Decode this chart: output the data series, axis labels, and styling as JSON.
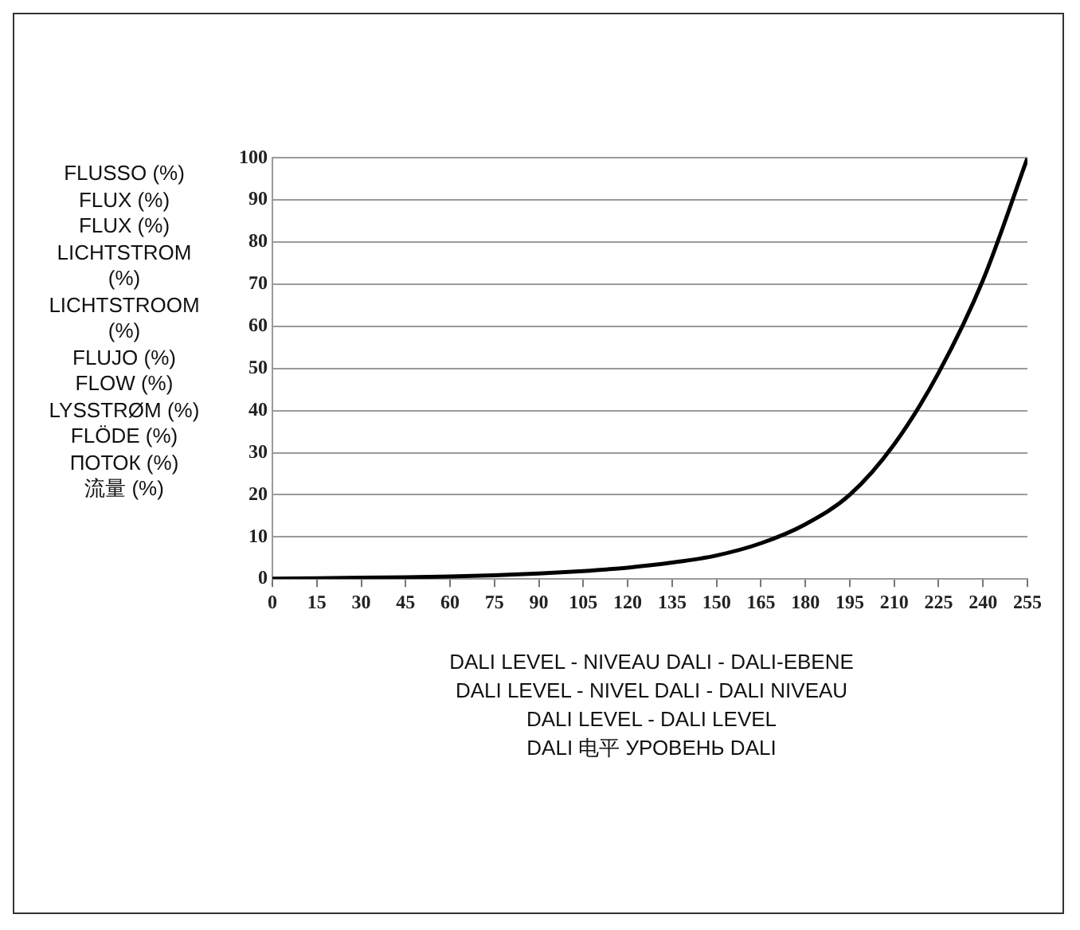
{
  "chart_data": {
    "type": "line",
    "xlabel": "DALI  LEVEL - NIVEAU DALI - DALI-EBENE\nDALI LEVEL - NIVEL DALI - DALI NIVEAU\nDALI LEVEL - DALI LEVEL\nDALI 电平 УРОВЕНЬ DALI",
    "ylabel": "FLUSSO (%)\nFLUX (%)\nFLUX (%)\nLICHTSTROM\n(%)\nLICHTSTROOM\n(%)\nFLUJO (%)\nFLOW (%)\nLYSSTRØM (%)\nFLÖDE (%)\nПОТОК (%)\n流量 (%)",
    "x": [
      0,
      15,
      30,
      45,
      60,
      75,
      90,
      105,
      120,
      135,
      150,
      165,
      180,
      195,
      210,
      225,
      240,
      255
    ],
    "series": [
      {
        "color": "#000000",
        "values": [
          0.1,
          0.2,
          0.3,
          0.4,
          0.6,
          0.9,
          1.3,
          1.9,
          2.7,
          3.9,
          5.6,
          8.5,
          13,
          20,
          32,
          49,
          71,
          100
        ]
      }
    ],
    "xlim": [
      0,
      255
    ],
    "xticks": [
      0,
      15,
      30,
      45,
      60,
      75,
      90,
      105,
      120,
      135,
      150,
      165,
      180,
      195,
      210,
      225,
      240,
      255
    ],
    "ylim": [
      0,
      100
    ],
    "yticks": [
      0,
      10,
      20,
      30,
      40,
      50,
      60,
      70,
      80,
      90,
      100
    ],
    "grid": "y",
    "legend": false,
    "marker": "none",
    "line_style": "solid"
  }
}
